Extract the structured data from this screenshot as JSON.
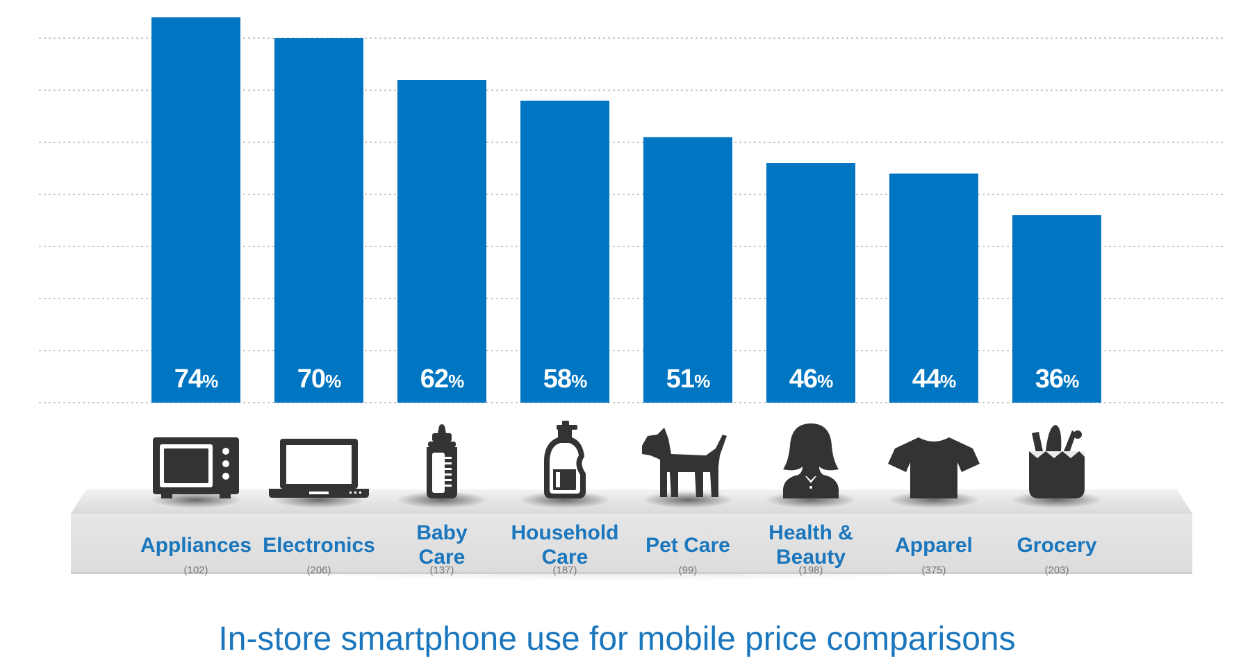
{
  "chart_data": {
    "type": "bar",
    "title": "In-store smartphone use for mobile price comparisons",
    "categories": [
      {
        "label_lines": [
          "Appliances"
        ],
        "n": "(102)",
        "value": 74,
        "value_label": "74",
        "icon": "microwave-icon"
      },
      {
        "label_lines": [
          "Electronics"
        ],
        "n": "(206)",
        "value": 70,
        "value_label": "70",
        "icon": "laptop-icon"
      },
      {
        "label_lines": [
          "Baby",
          "Care"
        ],
        "n": "(137)",
        "value": 62,
        "value_label": "62",
        "icon": "baby-bottle-icon"
      },
      {
        "label_lines": [
          "Household",
          "Care"
        ],
        "n": "(187)",
        "value": 58,
        "value_label": "58",
        "icon": "detergent-bottle-icon"
      },
      {
        "label_lines": [
          "Pet Care"
        ],
        "n": "(99)",
        "value": 51,
        "value_label": "51",
        "icon": "dog-icon"
      },
      {
        "label_lines": [
          "Health &",
          "Beauty"
        ],
        "n": "(198)",
        "value": 46,
        "value_label": "46",
        "icon": "woman-icon"
      },
      {
        "label_lines": [
          "Apparel"
        ],
        "n": "(375)",
        "value": 44,
        "value_label": "44",
        "icon": "tshirt-icon"
      },
      {
        "label_lines": [
          "Grocery"
        ],
        "n": "(203)",
        "value": 36,
        "value_label": "36",
        "icon": "grocery-bag-icon"
      }
    ],
    "unit_suffix": "%",
    "ylim": [
      0,
      80
    ],
    "grid": true,
    "colors": {
      "bar": "#0075c1",
      "label": "#1a76bd",
      "icon": "#333333",
      "grid": "#b5b5b5",
      "count": "#777777"
    }
  }
}
